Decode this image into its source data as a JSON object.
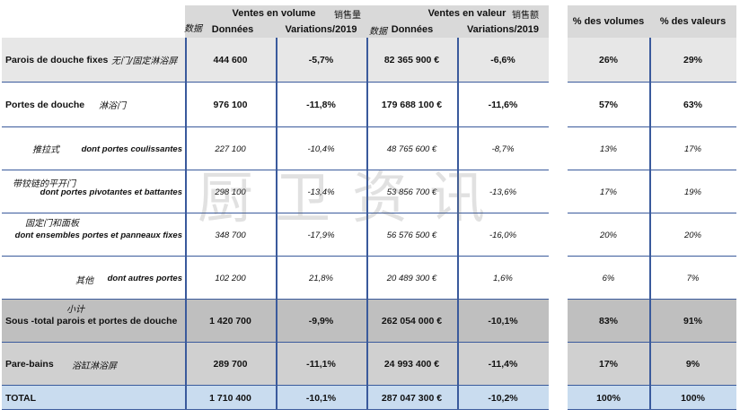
{
  "header": {
    "group_volume": "Ventes en volume",
    "group_volume_cn": "销售量",
    "group_value": "Ventes en valeur",
    "group_value_cn": "销售额",
    "pct_volumes": "% des volumes",
    "pct_values": "% des valeurs",
    "data_cn_1": "数据",
    "data_cn_2": "数据",
    "col_donnees_1": "Données",
    "col_var_1": "Variations/2019",
    "col_donnees_2": "Données",
    "col_var_2": "Variations/2019"
  },
  "rows": [
    {
      "label": "Parois de douche fixes",
      "cn": "无门/固定淋浴屏",
      "vol": "444 600",
      "vol_var": "-5,7%",
      "val": "82 365 900 €",
      "val_var": "-6,6%",
      "pct_vol": "26%",
      "pct_val": "29%"
    },
    {
      "label": "Portes de douche",
      "cn": "淋浴门",
      "vol": "976 100",
      "vol_var": "-11,8%",
      "val": "179 688 100 €",
      "val_var": "-11,6%",
      "pct_vol": "57%",
      "pct_val": "63%"
    },
    {
      "label": "dont portes coulissantes",
      "cn": "推拉式",
      "vol": "227 100",
      "vol_var": "-10,4%",
      "val": "48 765 600 €",
      "val_var": "-8,7%",
      "pct_vol": "13%",
      "pct_val": "17%"
    },
    {
      "label": "dont portes pivotantes et battantes",
      "cn": "带铰链的平开门",
      "vol": "298 100",
      "vol_var": "-13,4%",
      "val": "53 856 700 €",
      "val_var": "-13,6%",
      "pct_vol": "17%",
      "pct_val": "19%"
    },
    {
      "label": "dont ensembles portes et panneaux fixes",
      "cn": "固定门和面板",
      "vol": "348 700",
      "vol_var": "-17,9%",
      "val": "56 576 500 €",
      "val_var": "-16,0%",
      "pct_vol": "20%",
      "pct_val": "20%"
    },
    {
      "label": "dont autres portes",
      "cn": "其他",
      "vol": "102 200",
      "vol_var": "21,8%",
      "val": "20 489 300 €",
      "val_var": "1,6%",
      "pct_vol": "6%",
      "pct_val": "7%"
    },
    {
      "label": "Sous -total parois et portes de douche",
      "cn": "小计",
      "vol": "1 420 700",
      "vol_var": "-9,9%",
      "val": "262 054 000 €",
      "val_var": "-10,1%",
      "pct_vol": "83%",
      "pct_val": "91%"
    },
    {
      "label": "Pare-bains",
      "cn": "浴缸淋浴屏",
      "vol": "289 700",
      "vol_var": "-11,1%",
      "val": "24 993 400 €",
      "val_var": "-11,4%",
      "pct_vol": "17%",
      "pct_val": "9%"
    },
    {
      "label": "TOTAL",
      "cn": "",
      "vol": "1 710 400",
      "vol_var": "-10,1%",
      "val": "287 047 300 €",
      "val_var": "-10,2%",
      "pct_vol": "100%",
      "pct_val": "100%"
    }
  ],
  "watermark": "厨卫资讯",
  "colors": {
    "header_gray": "#d9d9d9",
    "row_gray": "#e7e7e7",
    "subtotal_gray": "#bfbfbf",
    "total_blue": "#c9dcef",
    "border_blue": "#3a5a9c"
  }
}
